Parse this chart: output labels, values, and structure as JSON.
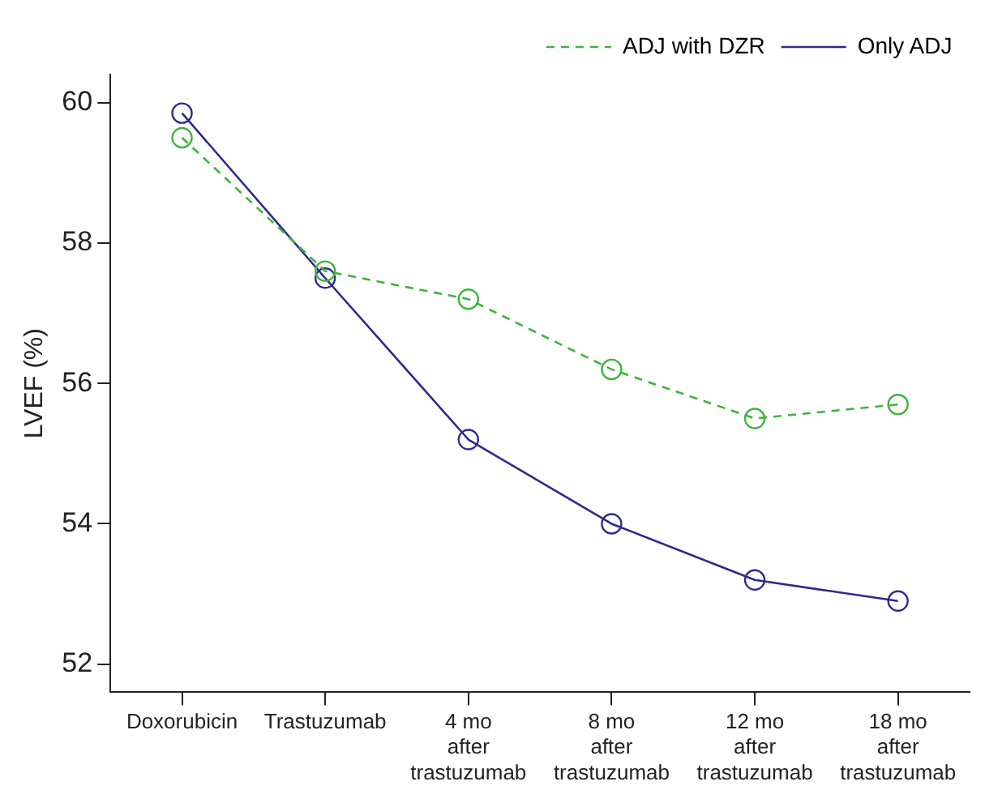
{
  "chart_data": {
    "type": "line",
    "ylabel": "LVEF (%)",
    "categories": [
      "Doxorubicin",
      "Trastuzumab",
      "4 mo after trastuzumab",
      "8 mo after trastuzumab",
      "12 mo after trastuzumab",
      "18 mo after trastuzumab"
    ],
    "series": [
      {
        "name": "ADJ with DZR",
        "color": "#3cb43c",
        "values": [
          59.5,
          57.6,
          57.2,
          56.2,
          55.5,
          55.7
        ],
        "line_style": "dashed"
      },
      {
        "name": "Only ADJ",
        "color": "#2e2a8a",
        "values": [
          59.85,
          57.5,
          55.2,
          54.0,
          53.2,
          52.9
        ],
        "line_style": "solid"
      }
    ],
    "ylim": [
      51.6,
      60.4
    ],
    "yticks": [
      52,
      54,
      56,
      58,
      60
    ],
    "grid": false,
    "legend": "top right",
    "marker": "circle"
  }
}
